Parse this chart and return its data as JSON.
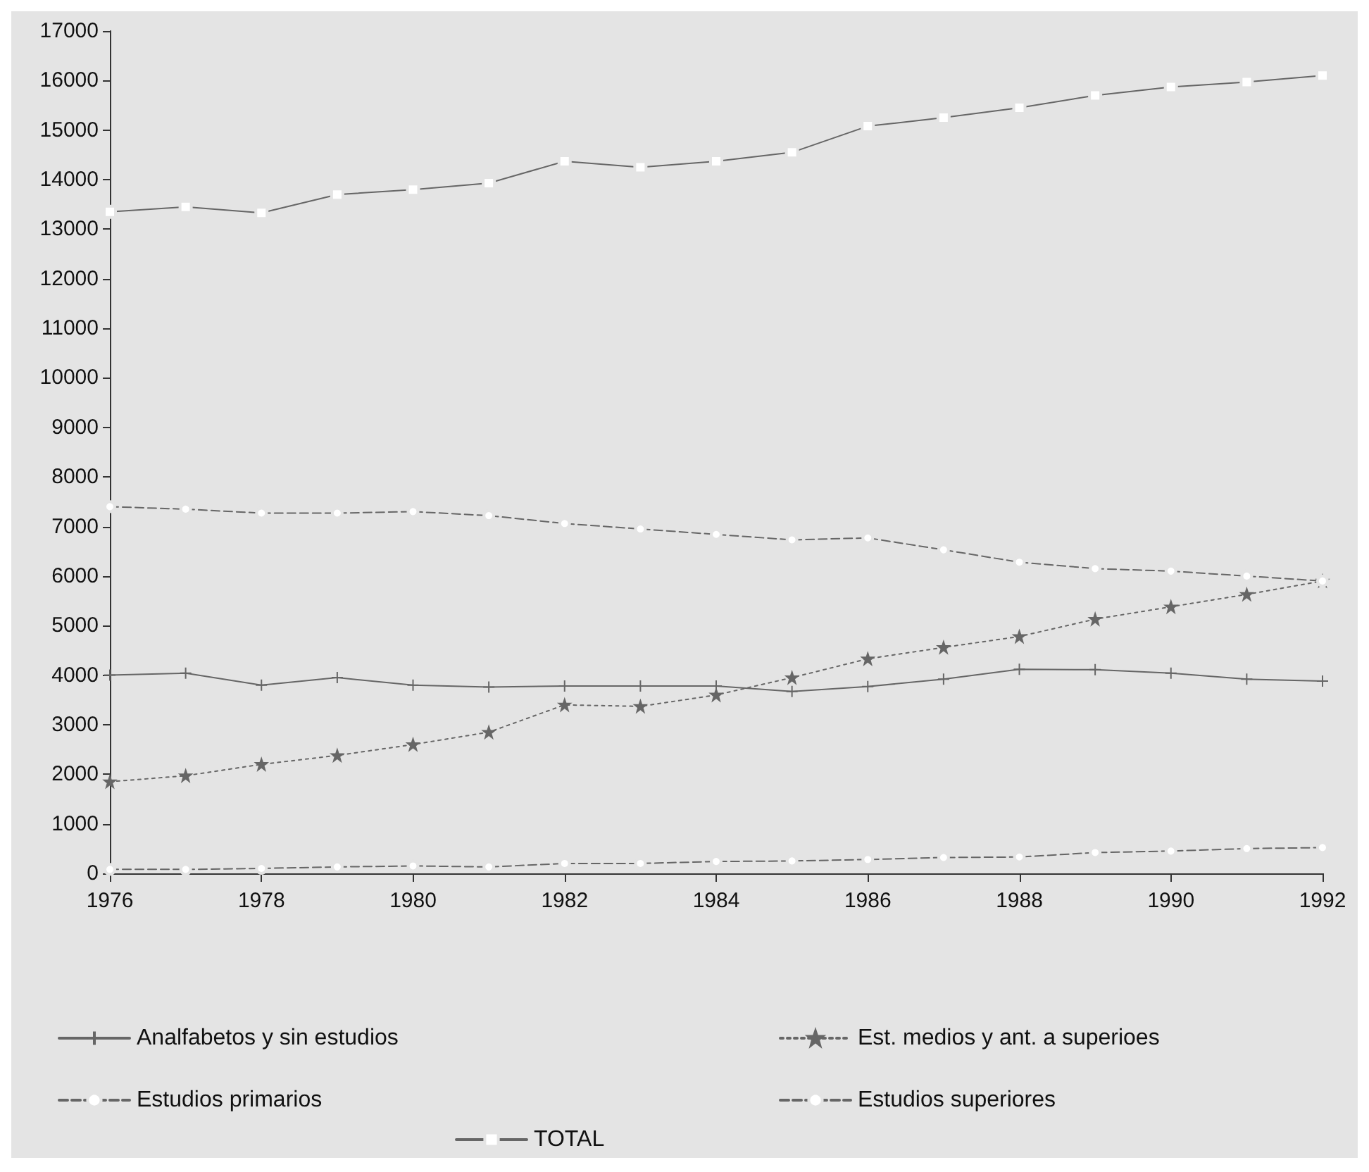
{
  "chart_data": {
    "type": "line",
    "x": [
      1976,
      1977,
      1978,
      1979,
      1980,
      1981,
      1982,
      1983,
      1984,
      1985,
      1986,
      1987,
      1988,
      1989,
      1990,
      1991,
      1992
    ],
    "series": [
      {
        "name": "Analfabetos y sin estudios",
        "color": "#666666",
        "marker": "cross",
        "line_style": "solid",
        "values": [
          4000,
          4040,
          3800,
          3950,
          3800,
          3760,
          3780,
          3780,
          3780,
          3670,
          3770,
          3920,
          4120,
          4110,
          4040,
          3920,
          3880
        ]
      },
      {
        "name": "Estudios primarios",
        "color": "#666666",
        "marker": "circle",
        "line_style": "dashed",
        "values": [
          7400,
          7350,
          7270,
          7270,
          7300,
          7220,
          7060,
          6950,
          6840,
          6730,
          6770,
          6530,
          6280,
          6150,
          6100,
          6000,
          5900
        ]
      },
      {
        "name": "Est. medios y ant. a superioes",
        "color": "#666666",
        "marker": "star",
        "line_style": "dotted",
        "values": [
          1850,
          1970,
          2200,
          2380,
          2600,
          2850,
          3400,
          3370,
          3600,
          3950,
          4330,
          4560,
          4780,
          5130,
          5380,
          5630,
          5900
        ]
      },
      {
        "name": "Estudios superiores",
        "color": "#666666",
        "marker": "circle",
        "line_style": "dashed",
        "values": [
          80,
          80,
          100,
          130,
          150,
          130,
          200,
          200,
          240,
          250,
          280,
          320,
          330,
          420,
          450,
          500,
          520
        ]
      },
      {
        "name": "TOTAL",
        "color": "#666666",
        "marker": "square",
        "line_style": "solid",
        "values": [
          13350,
          13450,
          13330,
          13700,
          13800,
          13930,
          14370,
          14250,
          14370,
          14550,
          15080,
          15250,
          15450,
          15700,
          15870,
          15970,
          16100
        ]
      }
    ],
    "xlim": [
      1976,
      1992
    ],
    "xticks": [
      1976,
      1978,
      1980,
      1982,
      1984,
      1986,
      1988,
      1990,
      1992
    ],
    "ylim": [
      0,
      17000
    ],
    "yticks": [
      0,
      1000,
      2000,
      3000,
      4000,
      5000,
      6000,
      7000,
      8000,
      9000,
      10000,
      11000,
      12000,
      13000,
      14000,
      15000,
      16000,
      17000
    ],
    "grid": false,
    "legend": "bottom"
  }
}
